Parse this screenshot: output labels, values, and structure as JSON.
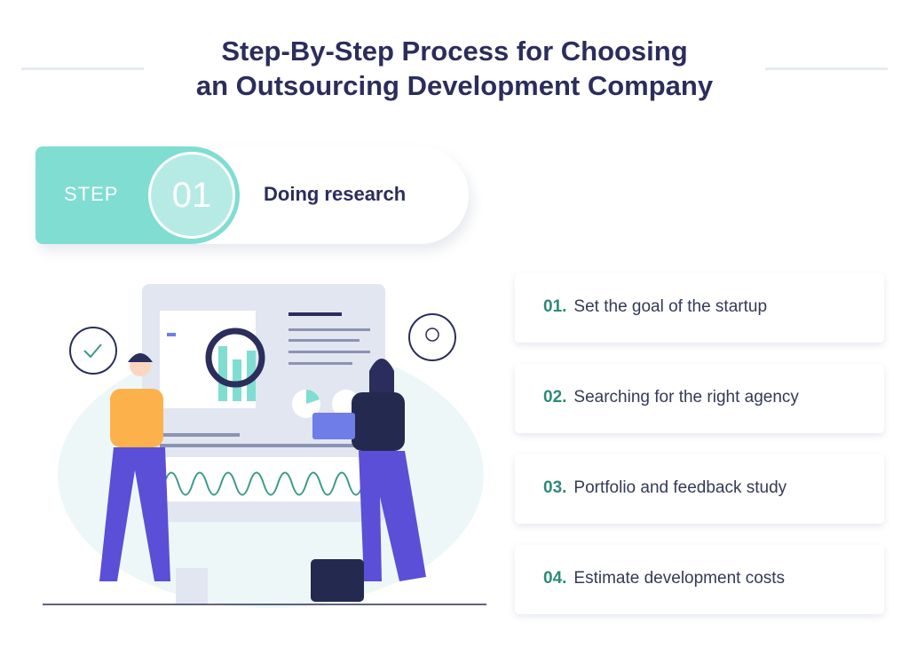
{
  "header": {
    "title_line1": "Step-By-Step Process for Choosing",
    "title_line2": "an Outsourcing Development Company"
  },
  "step": {
    "label": "STEP",
    "number": "01",
    "name": "Doing research"
  },
  "items": [
    {
      "number": "01.",
      "text": "Set the goal of the startup"
    },
    {
      "number": "02.",
      "text": "Searching for the right agency"
    },
    {
      "number": "03.",
      "text": "Portfolio and feedback study"
    },
    {
      "number": "04.",
      "text": "Estimate development costs"
    }
  ],
  "colors": {
    "title": "#2b2d5c",
    "accent_teal": "#80ddd2",
    "number_green": "#2d8a78",
    "figure_purple": "#5a4fd6",
    "figure_orange": "#fdb14a"
  }
}
